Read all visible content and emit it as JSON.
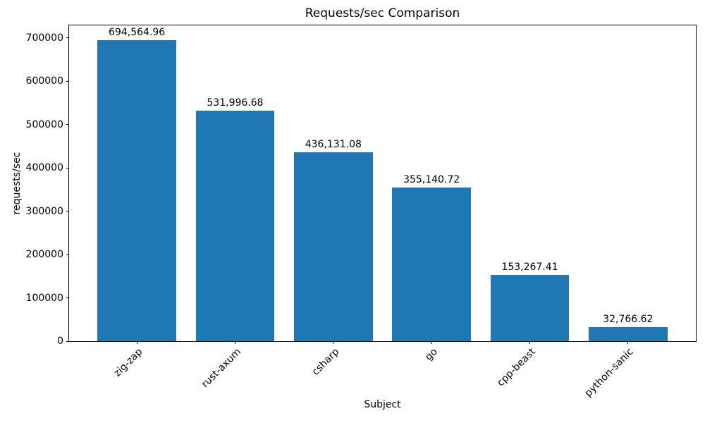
{
  "chart_data": {
    "type": "bar",
    "title": "Requests/sec Comparison",
    "xlabel": "Subject",
    "ylabel": "requests/sec",
    "categories": [
      "zig-zap",
      "rust-axum",
      "csharp",
      "go",
      "cpp-beast",
      "python-sanic"
    ],
    "values": [
      694564.96,
      531996.68,
      436131.08,
      355140.72,
      153267.41,
      32766.62
    ],
    "bar_labels": [
      "694,564.96",
      "531,996.68",
      "436,131.08",
      "355,140.72",
      "153,267.41",
      "32,766.62"
    ],
    "yticks": [
      0,
      100000,
      200000,
      300000,
      400000,
      500000,
      600000,
      700000
    ],
    "ylim": [
      0,
      729293
    ],
    "xlim": [
      -0.69,
      5.69
    ],
    "bar_width_fraction": 0.8,
    "x_label_rotation_deg": 45,
    "grid": false,
    "legend": "none",
    "bar_color": "#1f77b4",
    "axis_color": "#000000",
    "text_color": "#000000",
    "background_color": "#ffffff"
  }
}
